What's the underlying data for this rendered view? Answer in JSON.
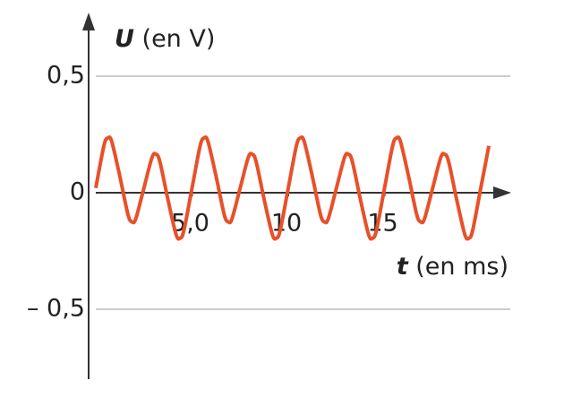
{
  "chart_data": {
    "type": "line",
    "ylabel_symbol": "U",
    "ylabel_unit": "(en V)",
    "xlabel_symbol": "t",
    "xlabel_unit": "(en ms)",
    "x": [
      0,
      0.42,
      0.63,
      0.83,
      1.25,
      1.67,
      1.88,
      2.08,
      2.5,
      2.92,
      3.13,
      3.33,
      3.75,
      4.17,
      4.38,
      4.58,
      5,
      5.42,
      5.63,
      5.83,
      6.25,
      6.67,
      6.88,
      7.08,
      7.5,
      7.92,
      8.13,
      8.33,
      8.75,
      9.17,
      9.38,
      9.58,
      10,
      10.42,
      10.63,
      10.83,
      11.25,
      11.67,
      11.88,
      12.08,
      12.5,
      12.92,
      13.13,
      13.33,
      13.75,
      14.17,
      14.38,
      14.58,
      15,
      15.42,
      15.63,
      15.83,
      16.25,
      16.67,
      16.88,
      17.08,
      17.5,
      17.92,
      18.13,
      18.33,
      18.75,
      19.17,
      19.38,
      19.58,
      20,
      20.42
    ],
    "series": [
      {
        "color": "#e8502a",
        "values": [
          0.02,
          0.201,
          0.235,
          0.219,
          0.07,
          -0.093,
          -0.125,
          -0.111,
          0.02,
          0.151,
          0.165,
          0.133,
          -0.03,
          -0.179,
          -0.195,
          -0.161,
          0.02,
          0.201,
          0.235,
          0.219,
          0.07,
          -0.093,
          -0.125,
          -0.111,
          0.02,
          0.151,
          0.165,
          0.133,
          -0.03,
          -0.179,
          -0.195,
          -0.161,
          0.02,
          0.201,
          0.235,
          0.219,
          0.07,
          -0.093,
          -0.125,
          -0.111,
          0.02,
          0.151,
          0.165,
          0.133,
          -0.03,
          -0.179,
          -0.195,
          -0.161,
          0.02,
          0.201,
          0.235,
          0.219,
          0.07,
          -0.093,
          -0.125,
          -0.111,
          0.02,
          0.151,
          0.165,
          0.133,
          -0.03,
          -0.179,
          -0.195,
          -0.161,
          0.02,
          0.201
        ]
      }
    ],
    "xlim": [
      0,
      21.3
    ],
    "ylim": [
      -0.8,
      0.75
    ],
    "xticks": [
      {
        "value": 5,
        "label": "5,0"
      },
      10,
      15
    ],
    "yticks": [
      {
        "value": 0.5,
        "label": "0,5"
      },
      0,
      {
        "value": -0.5,
        "label": "– 0,5"
      }
    ],
    "grid": true
  }
}
